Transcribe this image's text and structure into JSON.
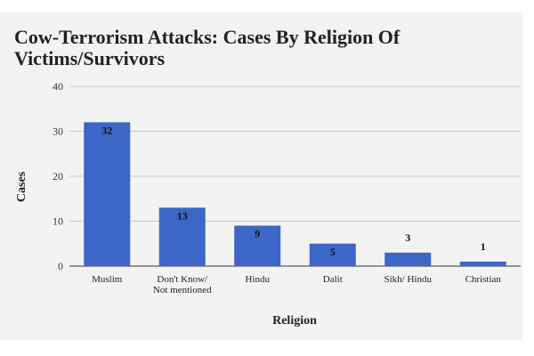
{
  "colors": {
    "bar": "#3c66c8",
    "grid": "#c8c8c8",
    "background": "#f3f3f3"
  },
  "chart_data": {
    "type": "bar",
    "title": "Cow-Terrorism Attacks: Cases By Religion Of Victims/Survivors",
    "xlabel": "Religion",
    "ylabel": "Cases",
    "ylim": [
      0,
      40
    ],
    "yticks": [
      "0",
      "10",
      "20",
      "30",
      "40"
    ],
    "categories": [
      [
        "Muslim"
      ],
      [
        "Don't Know/",
        "Not mentioned"
      ],
      [
        "Hindu"
      ],
      [
        "Dalit"
      ],
      [
        "Sikh/ Hindu"
      ],
      [
        "Christian"
      ]
    ],
    "values": [
      32,
      13,
      9,
      5,
      3,
      1
    ],
    "data_labels": [
      "32",
      "13",
      "9",
      "5",
      "3",
      "1"
    ],
    "grid": true,
    "legend": "none"
  }
}
